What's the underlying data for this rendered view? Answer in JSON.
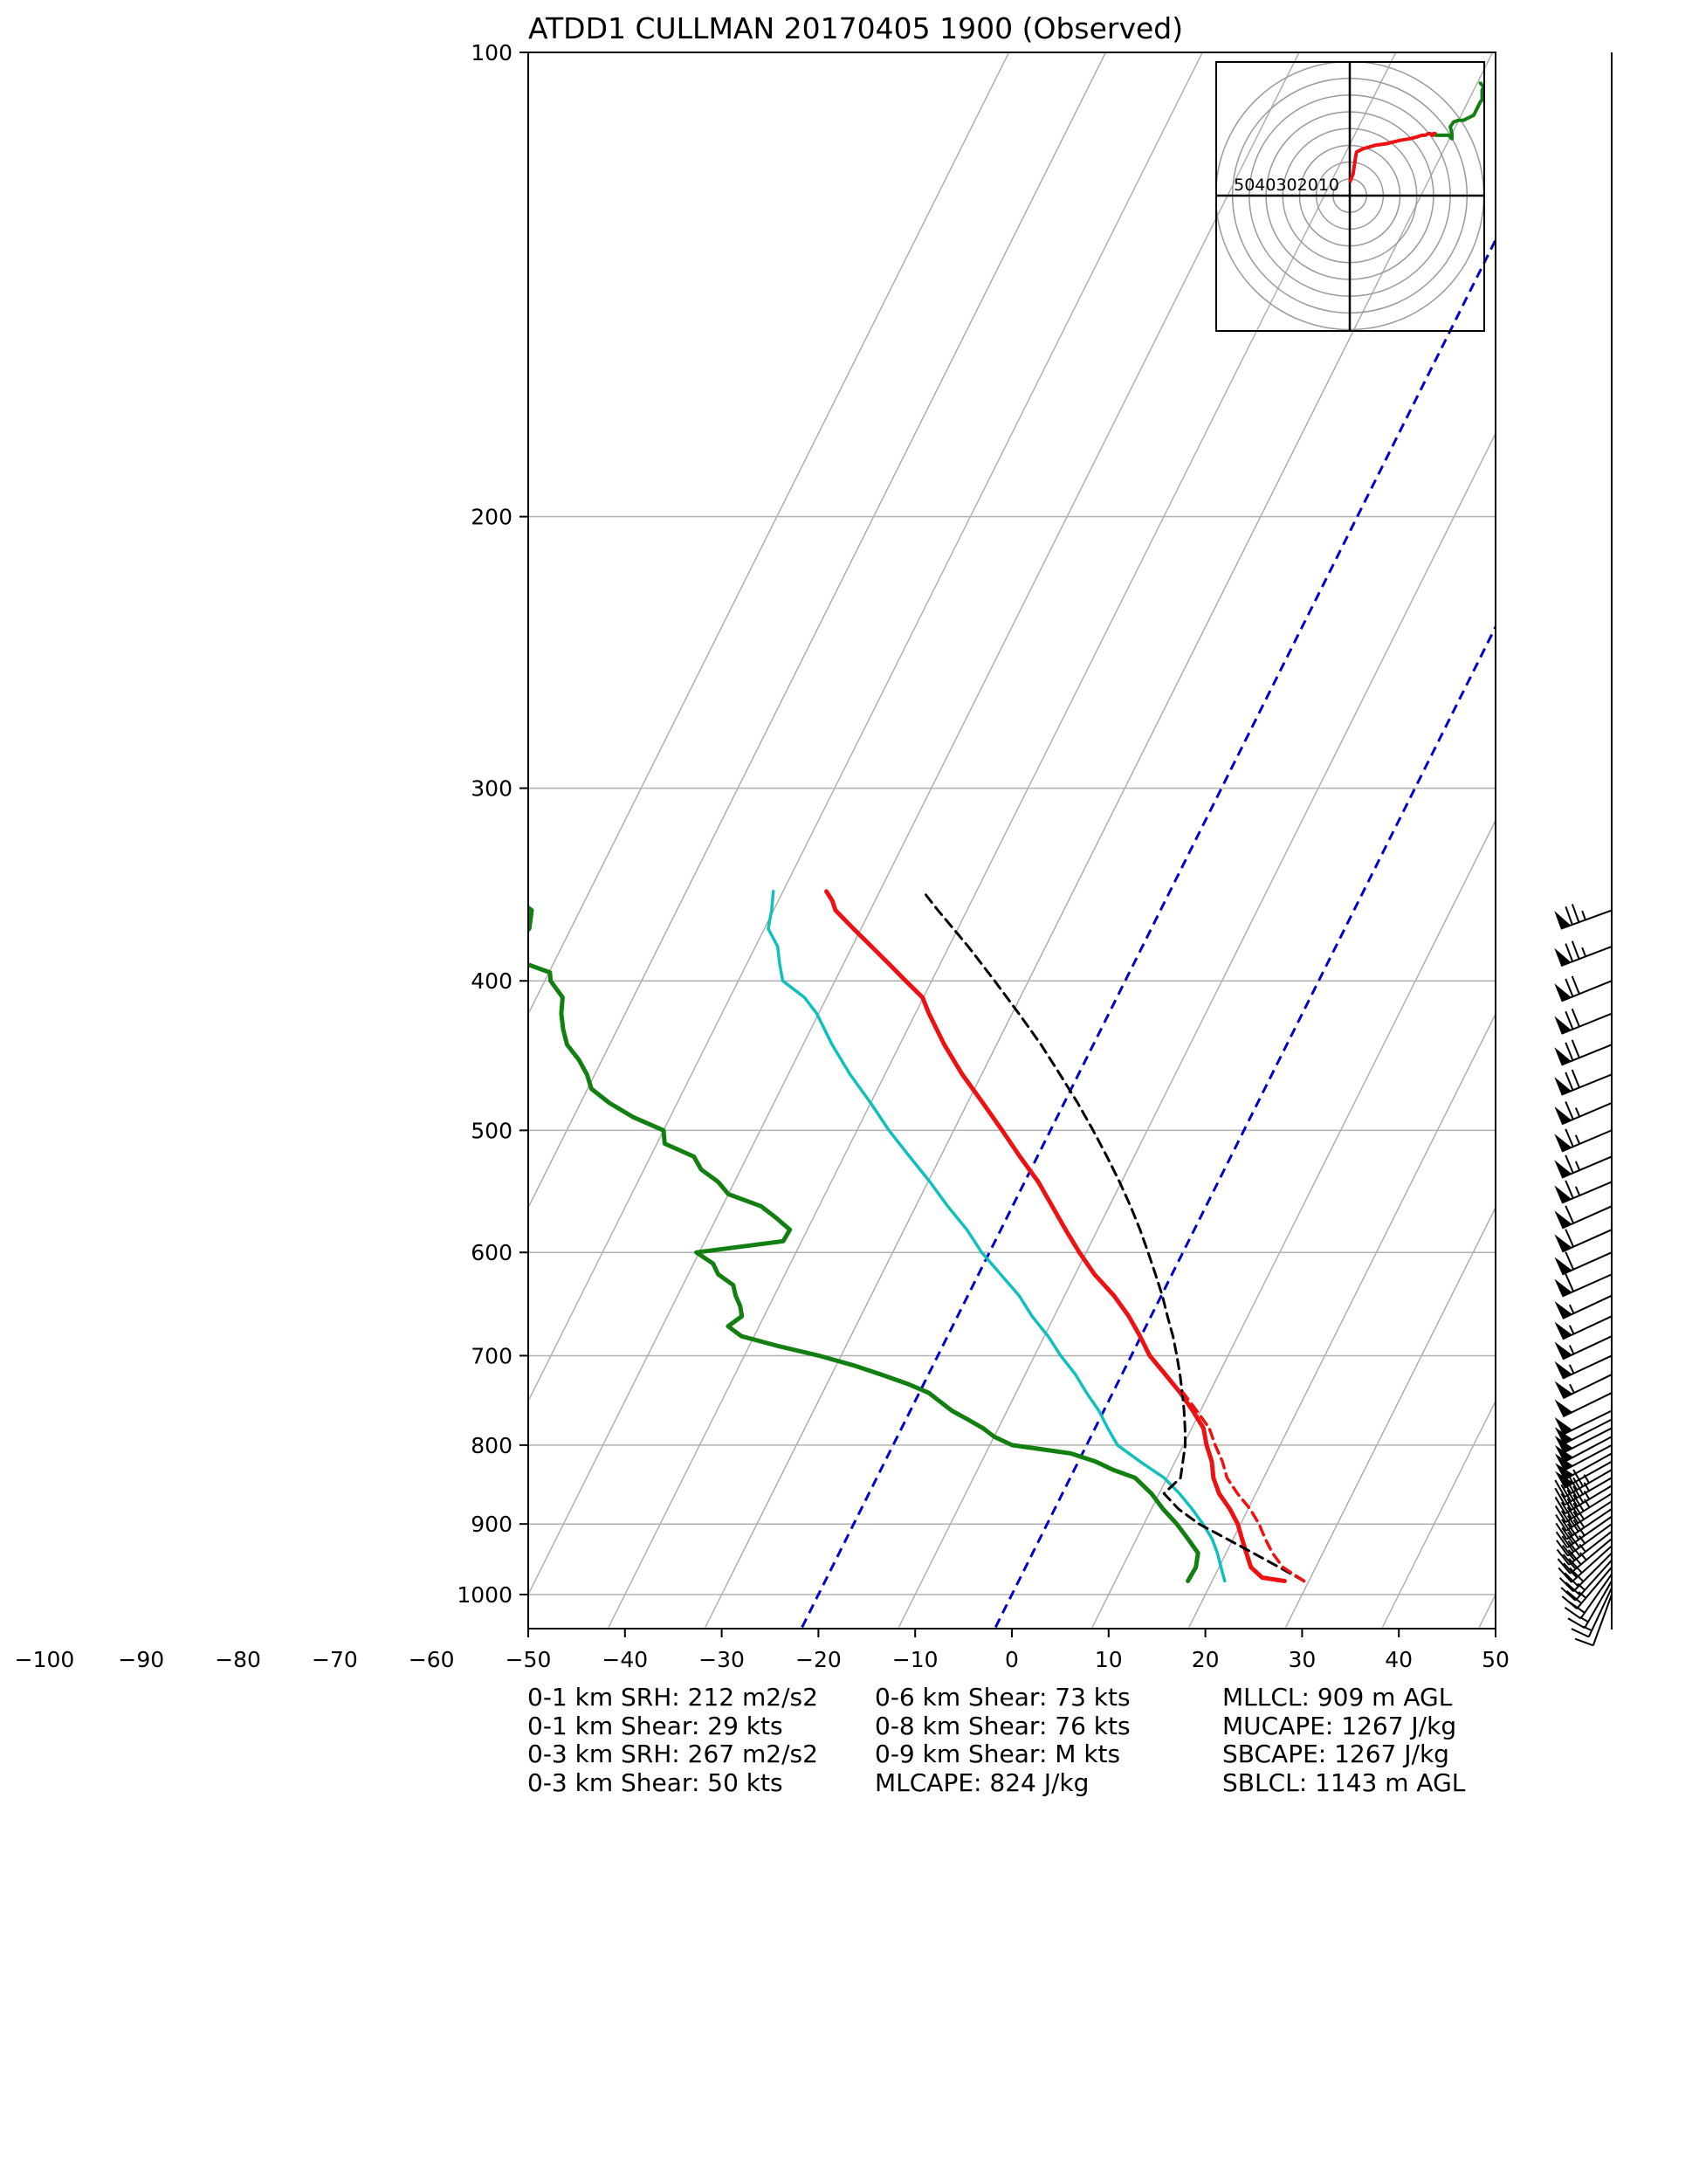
{
  "chart_data": {
    "type": "line",
    "chart_kind": "skew-t log-p sounding",
    "title": "ATDD1 CULLMAN 20170405 1900   (Observed)",
    "xlabel": "",
    "ylabel": "",
    "x_axis": {
      "min": -100,
      "max": 50,
      "ticks": [
        -100,
        -90,
        -80,
        -70,
        -60,
        -50,
        -40,
        -30,
        -20,
        -10,
        0,
        10,
        20,
        30,
        40,
        50
      ],
      "tick_labels": [
        "−100",
        "−90",
        "−80",
        "−70",
        "−60",
        "−50",
        "−40",
        "−30",
        "−20",
        "−10",
        "0",
        "10",
        "20",
        "30",
        "40",
        "50"
      ]
    },
    "y_axis": {
      "scale": "log",
      "inverted": true,
      "min": 100,
      "max": 1050,
      "ticks": [
        100,
        200,
        300,
        400,
        500,
        600,
        700,
        800,
        900,
        1000
      ],
      "tick_labels": [
        "100",
        "200",
        "300",
        "400",
        "500",
        "600",
        "700",
        "800",
        "900",
        "1000"
      ]
    },
    "grid": true,
    "skew_isotherms_c": [
      -80,
      -70,
      -60,
      -50,
      -40,
      -30,
      -20,
      -10,
      0,
      10,
      20,
      30,
      40,
      50,
      60,
      70,
      80
    ],
    "highlighted_isotherms_c": [
      -20,
      0
    ],
    "colors": {
      "temperature": "#ee1111",
      "dewpoint": "#118011",
      "wetbulb": "#11bfbf",
      "parcel": "#000000",
      "virtual_temperature": "#ee1111",
      "isotherm_highlight": "#0000cc",
      "grid": "#b0b0b0"
    },
    "series": [
      {
        "key": "temperature",
        "pressure": [
          980,
          975,
          960,
          940,
          920,
          900,
          880,
          860,
          840,
          820,
          800,
          780,
          760,
          740,
          720,
          700,
          680,
          660,
          640,
          620,
          600,
          580,
          560,
          540,
          520,
          500,
          480,
          460,
          440,
          420,
          410,
          400,
          390,
          380,
          370,
          360,
          355,
          350
        ],
        "temperature": [
          27.5,
          25,
          23.3,
          22.1,
          20.9,
          19.7,
          18.1,
          16.2,
          14.8,
          13.8,
          12.4,
          11.2,
          9.2,
          7.0,
          4.5,
          1.9,
          -0.1,
          -2.3,
          -4.9,
          -8.0,
          -10.7,
          -13.3,
          -15.9,
          -18.6,
          -21.8,
          -25.0,
          -28.4,
          -32.0,
          -35.4,
          -38.6,
          -40.1,
          -42.7,
          -45.3,
          -48.0,
          -50.8,
          -53.6,
          -54.4,
          -55.5
        ]
      },
      {
        "key": "dewpoint",
        "pressure": [
          980,
          960,
          940,
          920,
          900,
          880,
          860,
          840,
          830,
          820,
          810,
          800,
          790,
          780,
          770,
          760,
          740,
          730,
          720,
          710,
          700,
          690,
          680,
          670,
          660,
          650,
          640,
          630,
          620,
          610,
          600,
          590,
          580,
          570,
          560,
          550,
          540,
          530,
          520,
          510,
          500,
          490,
          480,
          470,
          460,
          450,
          440,
          430,
          420,
          410,
          400,
          395,
          390,
          380,
          370,
          360,
          355,
          350
        ],
        "temperature": [
          17.5,
          17.6,
          17.1,
          15.3,
          13.4,
          11.2,
          9.2,
          6.7,
          4.0,
          1.8,
          -1.2,
          -7.7,
          -10.0,
          -11.6,
          -13.6,
          -15.7,
          -19.0,
          -21.7,
          -24.9,
          -28.3,
          -32.3,
          -37.0,
          -41.3,
          -43.2,
          -42.3,
          -43.0,
          -44.0,
          -44.8,
          -46.9,
          -48.0,
          -50.3,
          -41.9,
          -41.8,
          -43.8,
          -46.0,
          -50.0,
          -51.7,
          -54.1,
          -55.5,
          -59.2,
          -60.0,
          -63.9,
          -67.0,
          -69.6,
          -70.8,
          -72.4,
          -74.4,
          -75.6,
          -76.6,
          -77.3,
          -79.4,
          -79.9,
          -82.8,
          -85.3,
          -84.3,
          -85.0,
          -86.8,
          -87.6
        ]
      },
      {
        "key": "wetbulb",
        "pressure": [
          980,
          960,
          940,
          920,
          900,
          880,
          860,
          840,
          820,
          800,
          780,
          760,
          740,
          720,
          700,
          680,
          660,
          640,
          620,
          600,
          580,
          560,
          540,
          520,
          500,
          480,
          460,
          440,
          420,
          410,
          400,
          390,
          380,
          370,
          360,
          350
        ],
        "temperature": [
          21.3,
          20.2,
          19.1,
          17.8,
          16.1,
          14.2,
          12.1,
          9.7,
          6.4,
          3.2,
          1.3,
          -0.5,
          -2.7,
          -4.8,
          -7.3,
          -9.6,
          -12.3,
          -14.7,
          -17.7,
          -20.8,
          -23.5,
          -26.7,
          -29.8,
          -33.2,
          -36.7,
          -40.0,
          -43.6,
          -47.0,
          -50.2,
          -52.3,
          -55.4,
          -56.6,
          -57.7,
          -59.6,
          -60.2,
          -61.0
        ]
      },
      {
        "key": "parcel",
        "pressure": [
          980,
          960,
          940,
          920,
          900,
          880,
          860,
          840,
          820,
          800,
          780,
          760,
          740,
          720,
          700,
          680,
          660,
          640,
          620,
          600,
          580,
          560,
          540,
          520,
          500,
          480,
          460,
          440,
          420,
          400,
          380,
          360,
          350
        ],
        "temperature": [
          29.5,
          26.2,
          22.8,
          19.3,
          15.7,
          12.8,
          10.5,
          11.4,
          10.8,
          10.2,
          9.3,
          8.3,
          7.2,
          6.0,
          4.7,
          3.3,
          1.7,
          0.1,
          -1.7,
          -3.6,
          -5.6,
          -7.8,
          -10.2,
          -12.8,
          -15.6,
          -18.6,
          -21.9,
          -25.4,
          -29.3,
          -33.5,
          -38.0,
          -43.0,
          -45.5
        ]
      },
      {
        "key": "virtual_temperature",
        "pressure": [
          980,
          960,
          940,
          920,
          900,
          880,
          860,
          840,
          820,
          800,
          780,
          760,
          740
        ],
        "temperature": [
          29.5,
          26.6,
          24.8,
          23.3,
          21.9,
          20.2,
          18.1,
          16.2,
          14.9,
          13.3,
          11.8,
          9.6,
          7.3
        ]
      }
    ],
    "wind_barbs": {
      "color": "#000000",
      "units": "kts",
      "pressure": [
        1000,
        990,
        980,
        970,
        960,
        950,
        940,
        930,
        920,
        910,
        900,
        890,
        880,
        870,
        860,
        850,
        840,
        830,
        820,
        810,
        800,
        790,
        780,
        770,
        760,
        740,
        720,
        700,
        680,
        660,
        640,
        620,
        600,
        580,
        560,
        540,
        520,
        500,
        480,
        460,
        440,
        420,
        400,
        380,
        360
      ],
      "direction_deg": [
        200,
        205,
        210,
        215,
        220,
        222,
        225,
        228,
        230,
        232,
        234,
        235,
        236,
        237,
        238,
        239,
        240,
        240,
        241,
        241,
        242,
        242,
        243,
        243,
        244,
        244,
        244,
        245,
        245,
        245,
        245,
        246,
        246,
        246,
        246,
        247,
        247,
        247,
        247,
        248,
        248,
        248,
        248,
        249,
        250
      ],
      "speed_kts": [
        12,
        14,
        16,
        20,
        24,
        27,
        29,
        31,
        33,
        35,
        36,
        38,
        40,
        42,
        44,
        45,
        46,
        47,
        48,
        49,
        50,
        50,
        50,
        51,
        52,
        52,
        53,
        54,
        55,
        56,
        57,
        58,
        59,
        60,
        62,
        63,
        64,
        65,
        67,
        68,
        70,
        71,
        72,
        74,
        76
      ]
    },
    "hodograph": {
      "ring_labels": [
        "50",
        "40",
        "30",
        "20",
        "10"
      ],
      "rings_kts": [
        10,
        20,
        30,
        40,
        50,
        60,
        70,
        80
      ],
      "range_kts": 80,
      "low_level_color": "#ee1111",
      "upper_level_color": "#118011",
      "low_level": {
        "u": [
          0,
          2,
          3,
          4,
          8,
          15,
          22,
          30,
          36,
          40,
          43,
          45,
          47,
          48,
          49,
          50,
          50,
          51,
          51
        ],
        "v": [
          8,
          13,
          20,
          26,
          28,
          30,
          31,
          33,
          34,
          35,
          36,
          36,
          37,
          37,
          36,
          37,
          36,
          37,
          36
        ]
      },
      "upper_level": {
        "u": [
          51,
          59,
          61,
          61,
          60,
          62,
          65,
          68,
          70,
          72,
          74,
          75,
          76,
          77,
          78,
          79,
          79,
          79,
          79,
          80,
          79,
          78,
          78
        ],
        "v": [
          36,
          36,
          34,
          37,
          41,
          44,
          45,
          45,
          46,
          47,
          48,
          50,
          52,
          54,
          56,
          57,
          59,
          61,
          63,
          65,
          66,
          67,
          68
        ]
      }
    }
  },
  "stats": {
    "col1": [
      "0-1 km SRH: 212 m2/s2",
      "0-1 km Shear: 29 kts",
      "0-3 km SRH: 267 m2/s2",
      "0-3 km Shear: 50 kts"
    ],
    "col2": [
      "0-6 km Shear: 73 kts",
      "0-8 km Shear: 76 kts",
      "0-9 km Shear: M kts",
      "MLCAPE: 824 J/kg"
    ],
    "col3": [
      "MLLCL: 909 m AGL",
      "MUCAPE: 1267 J/kg",
      "SBCAPE: 1267 J/kg",
      "SBLCL: 1143 m AGL"
    ]
  }
}
